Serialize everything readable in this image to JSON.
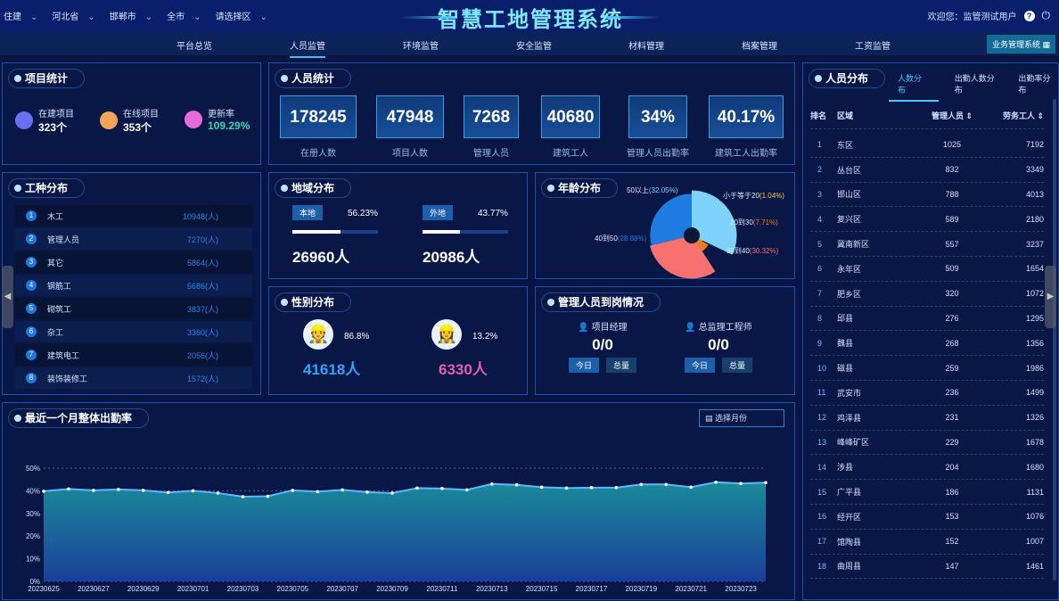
{
  "header": {
    "filters": [
      "住建",
      "河北省",
      "邯郸市",
      "全市",
      "请选择区"
    ],
    "title": "智慧工地管理系统",
    "welcome": "欢迎您：监管测试用户",
    "help_icon": "?",
    "biz_system": "业务管理系统"
  },
  "nav": [
    "平台总览",
    "人员监管",
    "环境监管",
    "安全监管",
    "材料管理",
    "档案管理",
    "工资监管"
  ],
  "nav_active": "人员监管",
  "project_stats": {
    "title": "项目统计",
    "items": [
      {
        "label": "在建项目",
        "value": "323个",
        "color": "#6a6ff0"
      },
      {
        "label": "在线项目",
        "value": "353个",
        "color": "#f2a65a"
      },
      {
        "label": "更新率",
        "value": "109.29%",
        "color": "#e46bd8"
      }
    ]
  },
  "personnel_stats": {
    "title": "人员统计",
    "items": [
      {
        "value": "178245",
        "label": "在册人数"
      },
      {
        "value": "47948",
        "label": "项目人数"
      },
      {
        "value": "7268",
        "label": "管理人员"
      },
      {
        "value": "40680",
        "label": "建筑工人"
      },
      {
        "value": "34%",
        "label": "管理人员出勤率"
      },
      {
        "value": "40.17%",
        "label": "建筑工人出勤率"
      }
    ]
  },
  "work_types": {
    "title": "工种分布",
    "items": [
      {
        "rank": "1",
        "name": "木工",
        "count": "10948(人)"
      },
      {
        "rank": "2",
        "name": "管理人员",
        "count": "7270(人)"
      },
      {
        "rank": "3",
        "name": "其它",
        "count": "5864(人)"
      },
      {
        "rank": "4",
        "name": "钢筋工",
        "count": "5686(人)"
      },
      {
        "rank": "5",
        "name": "砌筑工",
        "count": "3837(人)"
      },
      {
        "rank": "6",
        "name": "杂工",
        "count": "3360(人)"
      },
      {
        "rank": "7",
        "name": "建筑电工",
        "count": "2056(人)"
      },
      {
        "rank": "8",
        "name": "装饰装修工",
        "count": "1572(人)"
      }
    ]
  },
  "region": {
    "title": "地域分布",
    "local": {
      "label": "本地",
      "pct": "56.23%",
      "value": "26960人",
      "fraction": 0.5623
    },
    "outside": {
      "label": "外地",
      "pct": "43.77%",
      "value": "20986人",
      "fraction": 0.4377
    }
  },
  "age": {
    "title": "年龄分布",
    "slices": [
      {
        "label": "50以上",
        "pct": "(32.05%)",
        "value": 32.05,
        "color": "#7dd3fc"
      },
      {
        "label": "小于等于20",
        "pct": "(1.04%)",
        "value": 1.04,
        "color": "#f5c542"
      },
      {
        "label": "20到30",
        "pct": "(7.71%)",
        "value": 7.71,
        "color": "#f07c1e"
      },
      {
        "label": "30到40",
        "pct": "(30.32%)",
        "value": 30.32,
        "color": "#f87171"
      },
      {
        "label": "40到50",
        "pct": "(28.88%)",
        "value": 28.88,
        "color": "#1e7be0"
      }
    ]
  },
  "gender": {
    "title": "性别分布",
    "male": {
      "pct": "86.8%",
      "value": "41618人",
      "color": "#2ea3ff"
    },
    "female": {
      "pct": "13.2%",
      "value": "6330人",
      "color": "#e45fb0"
    }
  },
  "managers": {
    "title": "管理人员到岗情况",
    "items": [
      {
        "label": "项目经理",
        "value": "0/0",
        "today": "今日",
        "total": "总量"
      },
      {
        "label": "总监理工程师",
        "value": "0/0",
        "today": "今日",
        "total": "总量"
      }
    ]
  },
  "distribution": {
    "title": "人员分布",
    "tabs": [
      "人数分布",
      "出勤人数分布",
      "出勤率分布"
    ],
    "columns": [
      "排名",
      "区域",
      "管理人员 ⇕",
      "劳务工人 ⇕"
    ],
    "rows": [
      [
        "1",
        "东区",
        "1025",
        "7192"
      ],
      [
        "2",
        "丛台区",
        "832",
        "3349"
      ],
      [
        "3",
        "邯山区",
        "788",
        "4013"
      ],
      [
        "4",
        "复兴区",
        "589",
        "2180"
      ],
      [
        "5",
        "冀南新区",
        "557",
        "3237"
      ],
      [
        "6",
        "永年区",
        "509",
        "1654"
      ],
      [
        "7",
        "肥乡区",
        "320",
        "1072"
      ],
      [
        "8",
        "邱县",
        "276",
        "1295"
      ],
      [
        "9",
        "魏县",
        "268",
        "1356"
      ],
      [
        "10",
        "磁县",
        "259",
        "1986"
      ],
      [
        "11",
        "武安市",
        "236",
        "1499"
      ],
      [
        "12",
        "鸡泽县",
        "231",
        "1326"
      ],
      [
        "13",
        "峰峰矿区",
        "229",
        "1678"
      ],
      [
        "14",
        "涉县",
        "204",
        "1680"
      ],
      [
        "15",
        "广平县",
        "186",
        "1131"
      ],
      [
        "16",
        "经开区",
        "153",
        "1076"
      ],
      [
        "17",
        "馆陶县",
        "152",
        "1007"
      ],
      [
        "18",
        "曲周县",
        "147",
        "1461"
      ]
    ]
  },
  "attendance": {
    "title": "最近一个月整体出勤率",
    "month_placeholder": "选择月份"
  },
  "chart_data": {
    "type": "area",
    "ylim": [
      0,
      50
    ],
    "yticks": [
      "0%",
      "10%",
      "20%",
      "30%",
      "40%",
      "50%"
    ],
    "x": [
      "20230625",
      "20230626",
      "20230627",
      "20230628",
      "20230629",
      "20230630",
      "20230701",
      "20230702",
      "20230703",
      "20230704",
      "20230705",
      "20230706",
      "20230707",
      "20230708",
      "20230709",
      "20230710",
      "20230711",
      "20230712",
      "20230713",
      "20230714",
      "20230715",
      "20230716",
      "20230717",
      "20230718",
      "20230719",
      "20230720",
      "20230721",
      "20230722",
      "20230723",
      "20230724"
    ],
    "xticks": [
      "20230625",
      "20230627",
      "20230629",
      "20230701",
      "20230703",
      "20230705",
      "20230707",
      "20230709",
      "20230711",
      "20230713",
      "20230715",
      "20230717",
      "20230719",
      "20230721",
      "20230723"
    ],
    "values": [
      39.8,
      40.8,
      40.2,
      40.6,
      40.2,
      39.2,
      40,
      39,
      37.4,
      37.6,
      40.2,
      39.6,
      40.4,
      39.4,
      39,
      41.2,
      41,
      40.4,
      43,
      42.6,
      41.6,
      41.2,
      41.4,
      41.4,
      42.8,
      42.8,
      41.6,
      43.8,
      43.2,
      43.6
    ],
    "grid": true
  }
}
